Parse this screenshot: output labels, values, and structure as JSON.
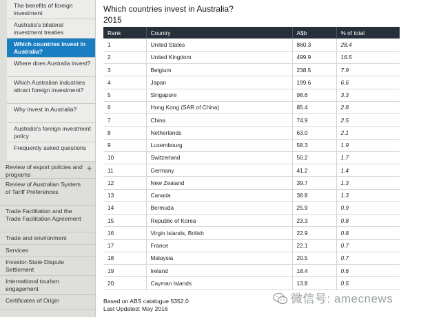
{
  "sidebar": {
    "sub_items": [
      {
        "label": "The benefits of foreign investment",
        "name": "sidebar-item-benefits-foreign-investment",
        "active": false
      },
      {
        "label": "Australia's bilateral investment treaties",
        "name": "sidebar-item-bilateral-investment-treaties",
        "active": false
      },
      {
        "label": "Which countries invest in Australia?",
        "name": "sidebar-item-which-countries-invest",
        "active": true
      },
      {
        "label": "Where does Australia invest?",
        "name": "sidebar-item-where-australia-invests",
        "active": false
      },
      {
        "label": "Which Australian industries attract foreign investment?",
        "name": "sidebar-item-industries-attract-investment",
        "active": false
      },
      {
        "label": "Why invest in Australia?",
        "name": "sidebar-item-why-invest",
        "active": false
      },
      {
        "label": "Australia's foreign investment policy",
        "name": "sidebar-item-foreign-investment-policy",
        "active": false
      },
      {
        "label": "Frequently asked questions",
        "name": "sidebar-item-faq",
        "active": false
      }
    ],
    "top_items": [
      {
        "label": "Review of export policies and programs",
        "name": "sidebar-item-review-export-policies",
        "has_plus": true,
        "plus": "+"
      },
      {
        "label": "Review of Australian System of Tariff Preferences",
        "name": "sidebar-item-review-tariff-preferences",
        "has_plus": false
      },
      {
        "label": "Trade Facilitation and the Trade Facilitation Agreement",
        "name": "sidebar-item-trade-facilitation",
        "has_plus": false
      },
      {
        "label": "Trade and environment",
        "name": "sidebar-item-trade-environment",
        "has_plus": false
      },
      {
        "label": "Services",
        "name": "sidebar-item-services",
        "has_plus": false
      },
      {
        "label": "Investor-State Dispute Settlement",
        "name": "sidebar-item-investor-state-dispute",
        "has_plus": false
      },
      {
        "label": "International tourism engagement",
        "name": "sidebar-item-international-tourism",
        "has_plus": false
      },
      {
        "label": "Certificates of Origin",
        "name": "sidebar-item-certificates-origin",
        "has_plus": false
      }
    ]
  },
  "main": {
    "title": "Which countries invest in Australia?",
    "year": "2015",
    "table": {
      "headers": [
        "Rank",
        "Country",
        "A$b",
        "% of total"
      ],
      "rows": [
        [
          "1",
          "United States",
          "860.3",
          "28.4"
        ],
        [
          "2",
          "United Kingdom",
          "499.9",
          "16.5"
        ],
        [
          "3",
          "Belgium",
          "238.5",
          "7.9"
        ],
        [
          "4",
          "Japan",
          "199.6",
          "6.6"
        ],
        [
          "5",
          "Singapore",
          "98.6",
          "3.3"
        ],
        [
          "6",
          "Hong Kong (SAR of China)",
          "85.4",
          "2.8"
        ],
        [
          "7",
          "China",
          "74.9",
          "2.5"
        ],
        [
          "8",
          "Netherlands",
          "63.0",
          "2.1"
        ],
        [
          "9",
          "Luxembourg",
          "58.3",
          "1.9"
        ],
        [
          "10",
          "Switzerland",
          "50.2",
          "1.7"
        ],
        [
          "11",
          "Germany",
          "41.2",
          "1.4"
        ],
        [
          "12",
          "New Zealand",
          "39.7",
          "1.3"
        ],
        [
          "13",
          "Canada",
          "38.8",
          "1.3"
        ],
        [
          "14",
          "Bermuda",
          "25.9",
          "0.9"
        ],
        [
          "15",
          "Republic of Korea",
          "23.3",
          "0.8"
        ],
        [
          "16",
          "Virgin Islands, British",
          "22.9",
          "0.8"
        ],
        [
          "17",
          "France",
          "22.1",
          "0.7"
        ],
        [
          "18",
          "Malaysia",
          "20.5",
          "0.7"
        ],
        [
          "19",
          "Ireland",
          "18.4",
          "0.6"
        ],
        [
          "20",
          "Cayman Islands",
          "13.8",
          "0.5"
        ]
      ]
    },
    "footer": {
      "source": "Based on ABS catalogue 5352.0",
      "updated": "Last Updated: May 2016"
    }
  },
  "watermark": {
    "text": "微信号: amecnews",
    "icon": "wechat-icon"
  },
  "colors": {
    "sidebar_bg": "#dedfdb",
    "sub_item_bg": "#ececea",
    "active_bg": "#1a7ec2",
    "table_header_bg": "#27303a"
  }
}
